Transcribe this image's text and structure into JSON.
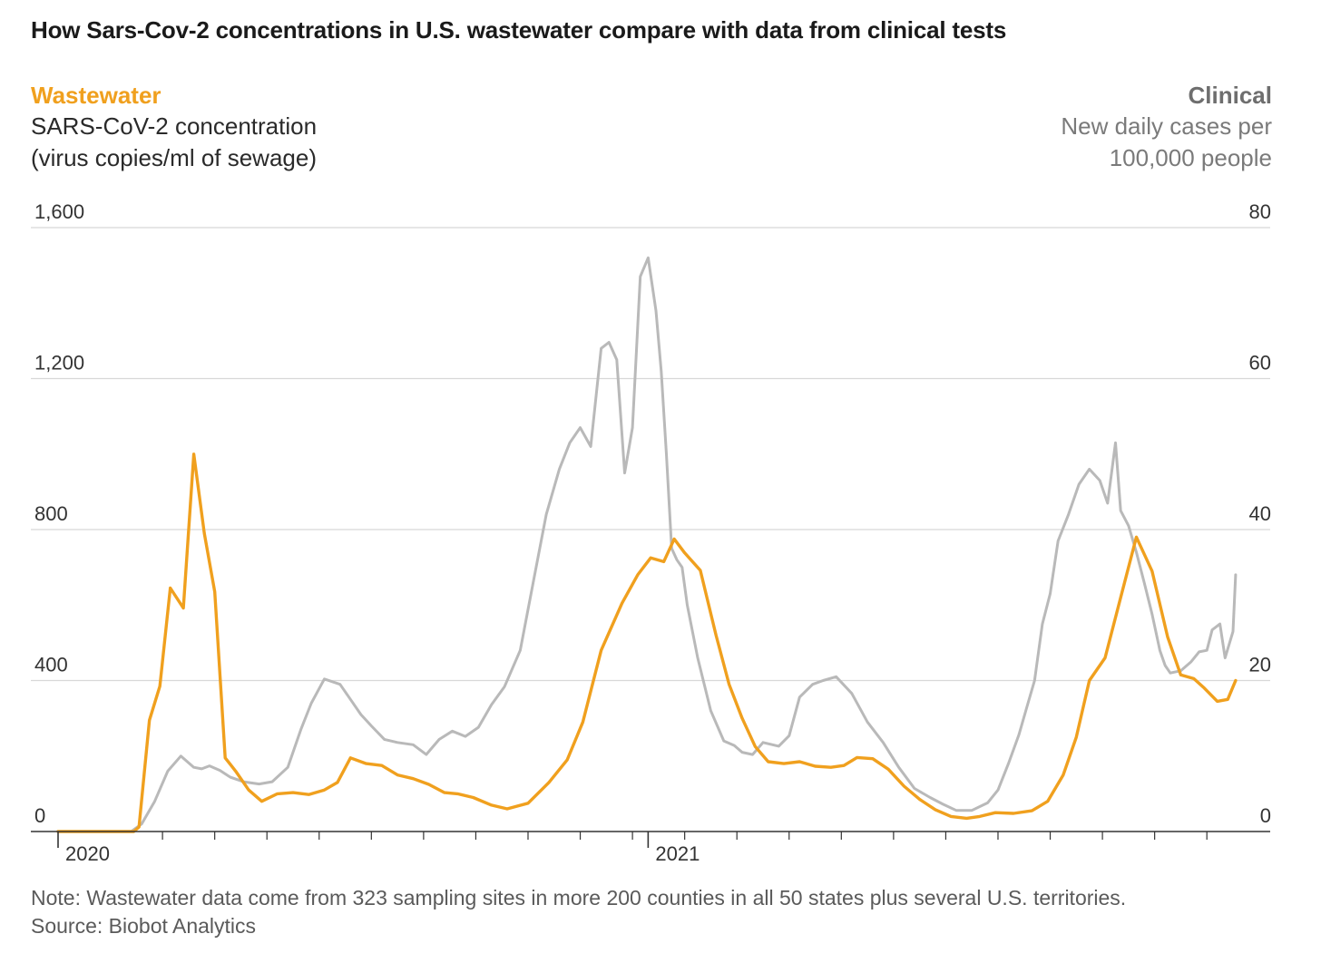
{
  "title": "How Sars-Cov-2 concentrations in U.S. wastewater compare with data from clinical tests",
  "left_axis": {
    "series_name": "Wastewater",
    "unit_line1": "SARS-CoV-2 concentration",
    "unit_line2": "(virus copies/ml of sewage)"
  },
  "right_axis": {
    "series_name": "Clinical",
    "unit_line1": "New daily cases per",
    "unit_line2": "100,000 people"
  },
  "note": "Note: Wastewater data come from 323 sampling sites in more 200 counties in all 50 states plus several U.S. territories.",
  "source": "Source: Biobot Analytics",
  "colors": {
    "wastewater": "#f0a01e",
    "clinical": "#b9b9b9",
    "grid": "#d8d8d8",
    "axis": "#333333"
  },
  "chart_data": {
    "type": "line",
    "x_unit": "months since Jan 2020",
    "xlim": [
      0,
      22.9
    ],
    "x_tick_labels": [
      {
        "x": 0,
        "label": "2020"
      },
      {
        "x": 11.3,
        "label": "2021"
      }
    ],
    "x_ticks": [
      2,
      3,
      4,
      5,
      6,
      7,
      8,
      9,
      10,
      11,
      11.3,
      12,
      13,
      14,
      15,
      16,
      17,
      18,
      19,
      20,
      21,
      22
    ],
    "left_axis": {
      "label": "SARS-CoV-2 concentration (virus copies/ml of sewage)",
      "ylim": [
        0,
        1600
      ],
      "ticks": [
        "0",
        "400",
        "800",
        "1,200",
        "1,600"
      ],
      "tick_values": [
        0,
        400,
        800,
        1200,
        1600
      ]
    },
    "right_axis": {
      "label": "New daily cases per 100,000 people",
      "ylim": [
        0,
        80
      ],
      "ticks": [
        "0",
        "20",
        "40",
        "60",
        "80"
      ],
      "tick_values": [
        0,
        20,
        40,
        60,
        80
      ]
    },
    "grid": true,
    "series": [
      {
        "name": "Wastewater",
        "axis": "left",
        "x": [
          0,
          1.45,
          1.55,
          1.75,
          1.95,
          2.15,
          2.4,
          2.6,
          2.8,
          3.0,
          3.2,
          3.4,
          3.65,
          3.9,
          4.2,
          4.5,
          4.8,
          5.1,
          5.35,
          5.6,
          5.9,
          6.2,
          6.5,
          6.8,
          7.1,
          7.4,
          7.65,
          7.95,
          8.3,
          8.6,
          9.0,
          9.4,
          9.75,
          10.05,
          10.4,
          10.8,
          11.1,
          11.35,
          11.6,
          11.8,
          12.0,
          12.3,
          12.6,
          12.85,
          13.1,
          13.35,
          13.6,
          13.9,
          14.2,
          14.5,
          14.8,
          15.05,
          15.3,
          15.6,
          15.9,
          16.2,
          16.5,
          16.8,
          17.1,
          17.4,
          17.65,
          17.95,
          18.3,
          18.65,
          18.95,
          19.25,
          19.5,
          19.75,
          20.05,
          20.35,
          20.65,
          20.95,
          21.25,
          21.5,
          21.75,
          21.95,
          22.2,
          22.4,
          22.55
        ],
        "y": [
          0,
          0,
          12,
          295,
          385,
          645,
          592,
          1000,
          790,
          635,
          195,
          160,
          110,
          80,
          100,
          103,
          98,
          110,
          130,
          195,
          180,
          175,
          150,
          140,
          125,
          103,
          100,
          90,
          70,
          60,
          75,
          130,
          190,
          290,
          480,
          605,
          680,
          725,
          715,
          775,
          738,
          692,
          520,
          390,
          300,
          225,
          185,
          180,
          185,
          173,
          170,
          175,
          196,
          193,
          165,
          120,
          85,
          58,
          40,
          35,
          40,
          50,
          48,
          55,
          80,
          150,
          250,
          400,
          460,
          620,
          780,
          690,
          515,
          415,
          405,
          380,
          345,
          350,
          400
        ]
      },
      {
        "name": "Clinical",
        "axis": "right",
        "x": [
          0,
          1.4,
          1.6,
          1.85,
          2.1,
          2.35,
          2.6,
          2.75,
          2.9,
          3.1,
          3.3,
          3.55,
          3.85,
          4.1,
          4.4,
          4.65,
          4.85,
          5.1,
          5.4,
          5.6,
          5.8,
          6.0,
          6.25,
          6.5,
          6.8,
          7.05,
          7.3,
          7.55,
          7.8,
          8.05,
          8.3,
          8.55,
          8.85,
          9.1,
          9.35,
          9.6,
          9.8,
          10.0,
          10.2,
          10.4,
          10.55,
          10.7,
          10.85,
          11.0,
          11.15,
          11.3,
          11.45,
          11.55,
          11.65,
          11.75,
          11.85,
          11.95,
          12.05,
          12.25,
          12.5,
          12.75,
          12.95,
          13.1,
          13.3,
          13.5,
          13.8,
          14.0,
          14.2,
          14.45,
          14.65,
          14.9,
          15.2,
          15.5,
          15.8,
          16.1,
          16.4,
          16.7,
          16.95,
          17.2,
          17.5,
          17.8,
          18.0,
          18.2,
          18.4,
          18.55,
          18.7,
          18.85,
          19.0,
          19.15,
          19.35,
          19.55,
          19.75,
          19.95,
          20.1,
          20.25,
          20.35,
          20.5,
          20.65,
          20.8,
          20.95,
          21.1,
          21.2,
          21.3,
          21.5,
          21.7,
          21.85,
          22.0,
          22.1,
          22.25,
          22.35,
          22.5,
          22.55
        ],
        "y": [
          0,
          0,
          1,
          4,
          8,
          10,
          8.5,
          8.3,
          8.7,
          8.1,
          7.2,
          6.6,
          6.3,
          6.6,
          8.5,
          13.5,
          17,
          20.2,
          19.5,
          17.5,
          15.5,
          14,
          12.2,
          11.8,
          11.5,
          10.2,
          12.2,
          13.3,
          12.6,
          13.8,
          16.8,
          19.2,
          24,
          33,
          42,
          48,
          51.5,
          53.5,
          51,
          64,
          64.8,
          62.5,
          47.5,
          53.5,
          73.5,
          76,
          69,
          61,
          50,
          37.5,
          36,
          35,
          30,
          23,
          16,
          12,
          11.4,
          10.5,
          10.2,
          11.8,
          11.3,
          12.7,
          17.8,
          19.5,
          20,
          20.5,
          18.3,
          14.5,
          11.8,
          8.5,
          5.7,
          4.5,
          3.6,
          2.8,
          2.8,
          3.8,
          5.5,
          9,
          12.8,
          16.4,
          20,
          27.5,
          31.5,
          38.5,
          42,
          46,
          48,
          46.5,
          43.5,
          51.5,
          42.5,
          40.5,
          37,
          33,
          28.8,
          24,
          22,
          21,
          21.3,
          22.5,
          23.8,
          24,
          26.7,
          27.5,
          23,
          26.5,
          34
        ]
      }
    ]
  }
}
